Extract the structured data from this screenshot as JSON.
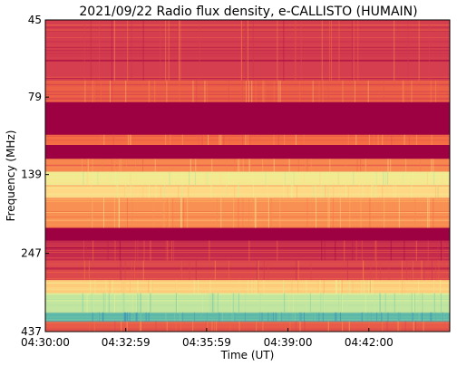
{
  "chart_data": {
    "type": "heatmap",
    "title": "2021/09/22  Radio flux density, e-CALLISTO (HUMAIN)",
    "xlabel": "Time (UT)",
    "ylabel": "Frequency (MHz)",
    "x_tick_labels": [
      "04:30:00",
      "04:32:59",
      "04:35:59",
      "04:39:00",
      "04:42:00"
    ],
    "y_tick_labels": [
      "45",
      "79",
      "139",
      "247",
      "437"
    ],
    "x_range": [
      "04:30:00",
      "04:45:00"
    ],
    "y_range": [
      45,
      437
    ],
    "colormap": "Spectral",
    "bands": [
      {
        "f_low": 45,
        "f_high": 70,
        "intensity": 0.12
      },
      {
        "f_low": 70,
        "f_high": 82,
        "intensity": 0.22
      },
      {
        "f_low": 82,
        "f_high": 104,
        "intensity": 0.0
      },
      {
        "f_low": 104,
        "f_high": 112,
        "intensity": 0.25
      },
      {
        "f_low": 112,
        "f_high": 124,
        "intensity": 0.0
      },
      {
        "f_low": 124,
        "f_high": 136,
        "intensity": 0.3
      },
      {
        "f_low": 136,
        "f_high": 150,
        "intensity": 0.55
      },
      {
        "f_low": 150,
        "f_high": 165,
        "intensity": 0.48
      },
      {
        "f_low": 165,
        "f_high": 205,
        "intensity": 0.32
      },
      {
        "f_low": 205,
        "f_high": 225,
        "intensity": 0.0
      },
      {
        "f_low": 225,
        "f_high": 260,
        "intensity": 0.08
      },
      {
        "f_low": 260,
        "f_high": 300,
        "intensity": 0.15
      },
      {
        "f_low": 300,
        "f_high": 330,
        "intensity": 0.45
      },
      {
        "f_low": 330,
        "f_high": 380,
        "intensity": 0.7
      },
      {
        "f_low": 380,
        "f_high": 405,
        "intensity": 0.9
      },
      {
        "f_low": 405,
        "f_high": 437,
        "intensity": 0.2
      }
    ]
  }
}
